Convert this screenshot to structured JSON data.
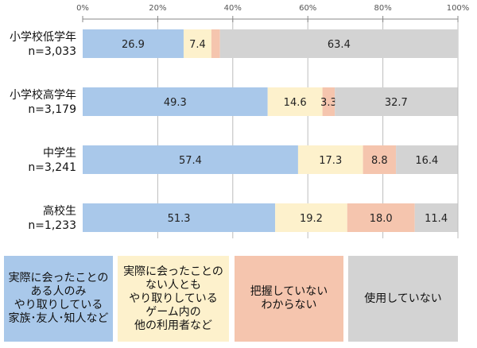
{
  "chart_data": {
    "type": "bar",
    "orientation": "horizontal-stacked-percent",
    "xlim": [
      0,
      100
    ],
    "ticks": [
      "0%",
      "20%",
      "40%",
      "60%",
      "80%",
      "100%"
    ],
    "tick_values": [
      0,
      20,
      40,
      60,
      80,
      100
    ],
    "grid": true,
    "categories": [
      {
        "name": "小学校低学年",
        "n": "n=3,033"
      },
      {
        "name": "小学校高学年",
        "n": "n=3,179"
      },
      {
        "name": "中学生",
        "n": "n=3,241"
      },
      {
        "name": "高校生",
        "n": "n=1,233"
      }
    ],
    "series": [
      {
        "name": "実際に会ったことのある人のみ\nやり取りしている\n家族･友人･知人など",
        "color": "#a9c8ea",
        "values": [
          26.9,
          49.3,
          57.4,
          51.3
        ],
        "labels": [
          "26.9",
          "49.3",
          "57.4",
          "51.3"
        ]
      },
      {
        "name": "実際に会ったことの\nない人とも\nやり取りしている\nゲーム内の\n他の利用者など",
        "color": "#fdf1cc",
        "values": [
          7.4,
          14.6,
          17.3,
          19.2
        ],
        "labels": [
          "7.4",
          "14.6",
          "17.3",
          "19.2"
        ]
      },
      {
        "name": "把握していない\nわからない",
        "color": "#f5c5ae",
        "values": [
          2.3,
          3.3,
          8.8,
          18.0
        ],
        "labels": [
          "",
          "3.3",
          "8.8",
          "18.0"
        ]
      },
      {
        "name": "使用していない",
        "color": "#d3d3d3",
        "values": [
          63.4,
          32.7,
          16.4,
          11.4
        ],
        "labels": [
          "63.4",
          "32.7",
          "16.4",
          "11.4"
        ]
      }
    ],
    "legend": "bottom"
  }
}
